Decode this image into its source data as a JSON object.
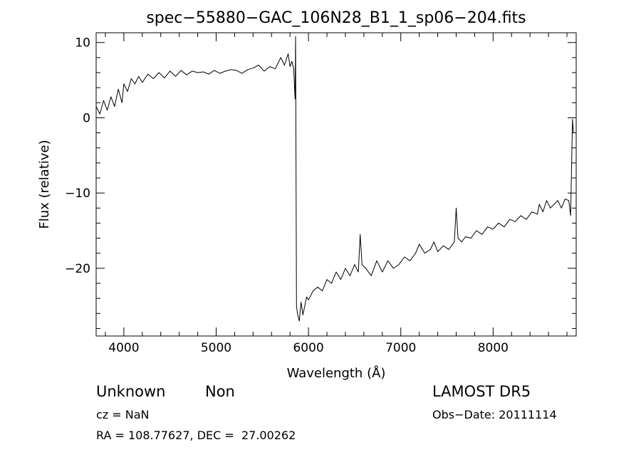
{
  "chart_data": {
    "type": "line",
    "title": "spec−55880−GAC_106N28_B1_1_sp06−204.fits",
    "xlabel": "Wavelength (Å)",
    "ylabel": "Flux (relative)",
    "xlim": [
      3700,
      8900
    ],
    "ylim": [
      -29,
      11.3
    ],
    "xticks": [
      4000,
      5000,
      6000,
      7000,
      8000
    ],
    "xtick_labels": [
      "4000",
      "5000",
      "6000",
      "7000",
      "8000"
    ],
    "yticks": [
      10,
      0,
      -10,
      -20
    ],
    "ytick_labels": [
      "10",
      "0",
      "−10",
      "−20"
    ],
    "grid": false,
    "legend": "none",
    "line_color": "#000000",
    "series": [
      {
        "x": [
          3700,
          3740,
          3780,
          3820,
          3860,
          3900,
          3940,
          3980,
          4000,
          4040,
          4080,
          4120,
          4160,
          4200,
          4260,
          4320,
          4380,
          4440,
          4500,
          4560,
          4620,
          4680,
          4740,
          4800,
          4860,
          4920,
          4980,
          5040,
          5100,
          5160,
          5220,
          5280,
          5340,
          5400,
          5460,
          5520,
          5580,
          5640,
          5700,
          5740,
          5780,
          5800,
          5820,
          5840,
          5855,
          5860,
          5870,
          5880,
          5900,
          5920,
          5940,
          5960,
          5980,
          6000,
          6050,
          6100,
          6150,
          6200,
          6250,
          6300,
          6350,
          6400,
          6450,
          6500,
          6540,
          6560,
          6580,
          6620,
          6680,
          6740,
          6800,
          6860,
          6920,
          6980,
          7040,
          7100,
          7160,
          7200,
          7260,
          7320,
          7360,
          7400,
          7460,
          7520,
          7580,
          7600,
          7620,
          7660,
          7700,
          7760,
          7820,
          7880,
          7940,
          8000,
          8060,
          8120,
          8180,
          8240,
          8300,
          8360,
          8420,
          8480,
          8500,
          8540,
          8580,
          8620,
          8660,
          8700,
          8740,
          8780,
          8820,
          8840,
          8860,
          8870
        ],
        "y": [
          1.5,
          0.5,
          2.3,
          1.0,
          2.8,
          1.5,
          3.8,
          2.0,
          4.5,
          3.5,
          5.2,
          4.5,
          5.5,
          4.7,
          5.8,
          5.2,
          6.0,
          5.3,
          6.2,
          5.5,
          6.3,
          5.7,
          6.2,
          6.0,
          6.1,
          5.8,
          6.3,
          5.9,
          6.2,
          6.4,
          6.3,
          5.9,
          6.4,
          6.6,
          7.0,
          6.2,
          6.8,
          6.5,
          8.0,
          7.0,
          8.5,
          6.8,
          7.5,
          6.5,
          2.5,
          10.8,
          -25.0,
          -26.0,
          -27.0,
          -24.5,
          -26.2,
          -25.0,
          -23.8,
          -24.2,
          -23.0,
          -22.5,
          -23.0,
          -21.5,
          -22.0,
          -20.5,
          -21.5,
          -20.0,
          -21.0,
          -19.5,
          -20.5,
          -15.5,
          -19.5,
          -20.0,
          -21.0,
          -19.0,
          -20.5,
          -19.0,
          -20.0,
          -19.5,
          -18.5,
          -19.0,
          -18.0,
          -16.8,
          -18.0,
          -17.5,
          -16.5,
          -17.8,
          -17.0,
          -17.5,
          -16.5,
          -12.0,
          -16.0,
          -16.5,
          -15.8,
          -16.0,
          -15.0,
          -15.5,
          -14.5,
          -14.8,
          -14.0,
          -14.5,
          -13.5,
          -13.8,
          -13.0,
          -13.5,
          -12.5,
          -12.8,
          -11.5,
          -12.5,
          -11.0,
          -12.0,
          -11.5,
          -11.0,
          -12.0,
          -10.8,
          -11.0,
          -13.0,
          -0.2,
          -2.0
        ]
      }
    ]
  },
  "annotations": {
    "class_label": "Unknown",
    "subclass_label": "Non",
    "survey_label": "LAMOST DR5",
    "cz_text": "cz = NaN",
    "obsdate_text": "Obs−Date: 20111114",
    "radec_text": "RA = 108.77627, DEC =  27.00262"
  }
}
